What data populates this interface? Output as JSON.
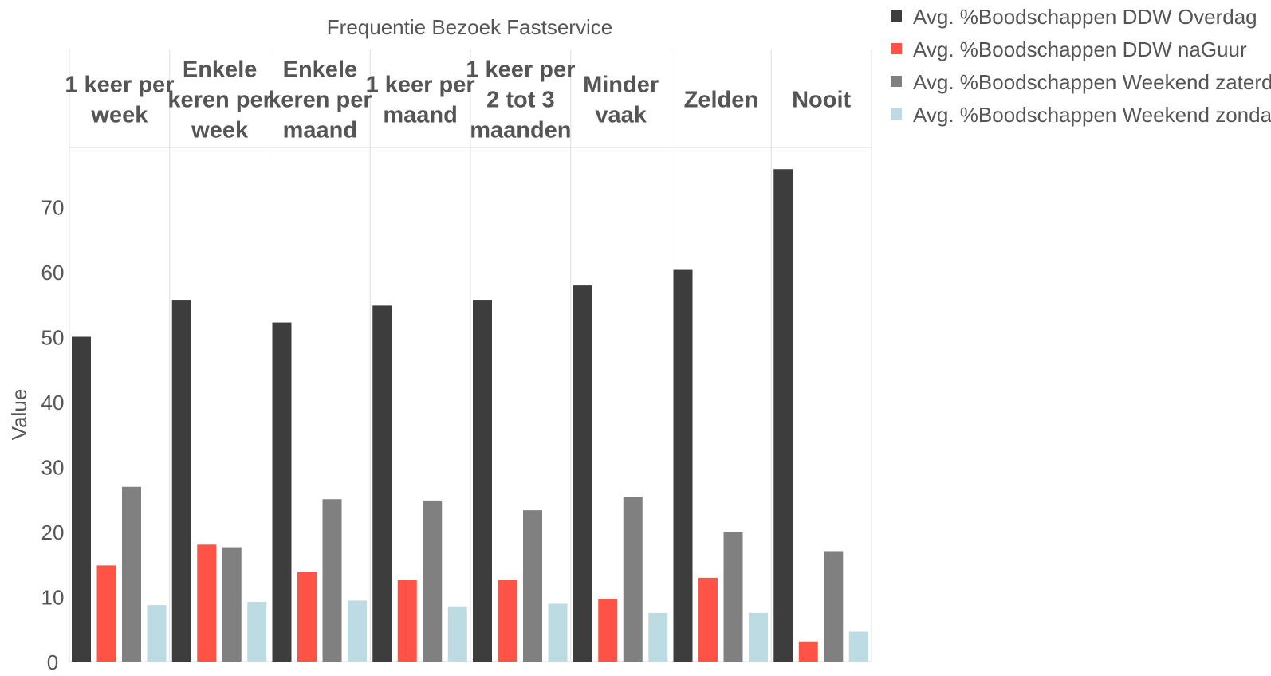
{
  "chart_data": {
    "type": "bar",
    "title": "Frequentie Bezoek Fastservice",
    "ylabel": "Value",
    "xlabel": "",
    "ylim": [
      0,
      79
    ],
    "yticks": [
      0,
      10,
      20,
      30,
      40,
      50,
      60,
      70
    ],
    "categories": [
      [
        "1 keer per",
        "week"
      ],
      [
        "Enkele",
        "keren per",
        "week"
      ],
      [
        "Enkele",
        "keren per",
        "maand"
      ],
      [
        "1 keer per",
        "maand"
      ],
      [
        "1 keer per",
        "2 tot 3",
        "maanden"
      ],
      [
        "Minder",
        "vaak"
      ],
      [
        "Zelden"
      ],
      [
        "Nooit"
      ]
    ],
    "series": [
      {
        "name": "Avg. %Boodschappen DDW Overdag",
        "color": "#3d3d3d",
        "values": [
          50.0,
          55.7,
          52.2,
          54.8,
          55.7,
          57.9,
          60.3,
          75.8
        ]
      },
      {
        "name": "Avg. %Boodschappen DDW naGuur",
        "color": "#ff5347",
        "values": [
          14.8,
          18.0,
          13.8,
          12.6,
          12.6,
          9.7,
          12.9,
          3.1
        ]
      },
      {
        "name": "Avg. %Boodschappen Weekend zaterdag",
        "color": "#808080",
        "values": [
          26.9,
          17.6,
          25.0,
          24.8,
          23.3,
          25.4,
          20.0,
          17.0
        ]
      },
      {
        "name": "Avg. %Boodschappen Weekend zondag",
        "color": "#bcdbe3",
        "values": [
          8.7,
          9.2,
          9.4,
          8.5,
          8.9,
          7.5,
          7.5,
          4.6
        ]
      }
    ],
    "grid": true,
    "legend_position": "top-right"
  }
}
